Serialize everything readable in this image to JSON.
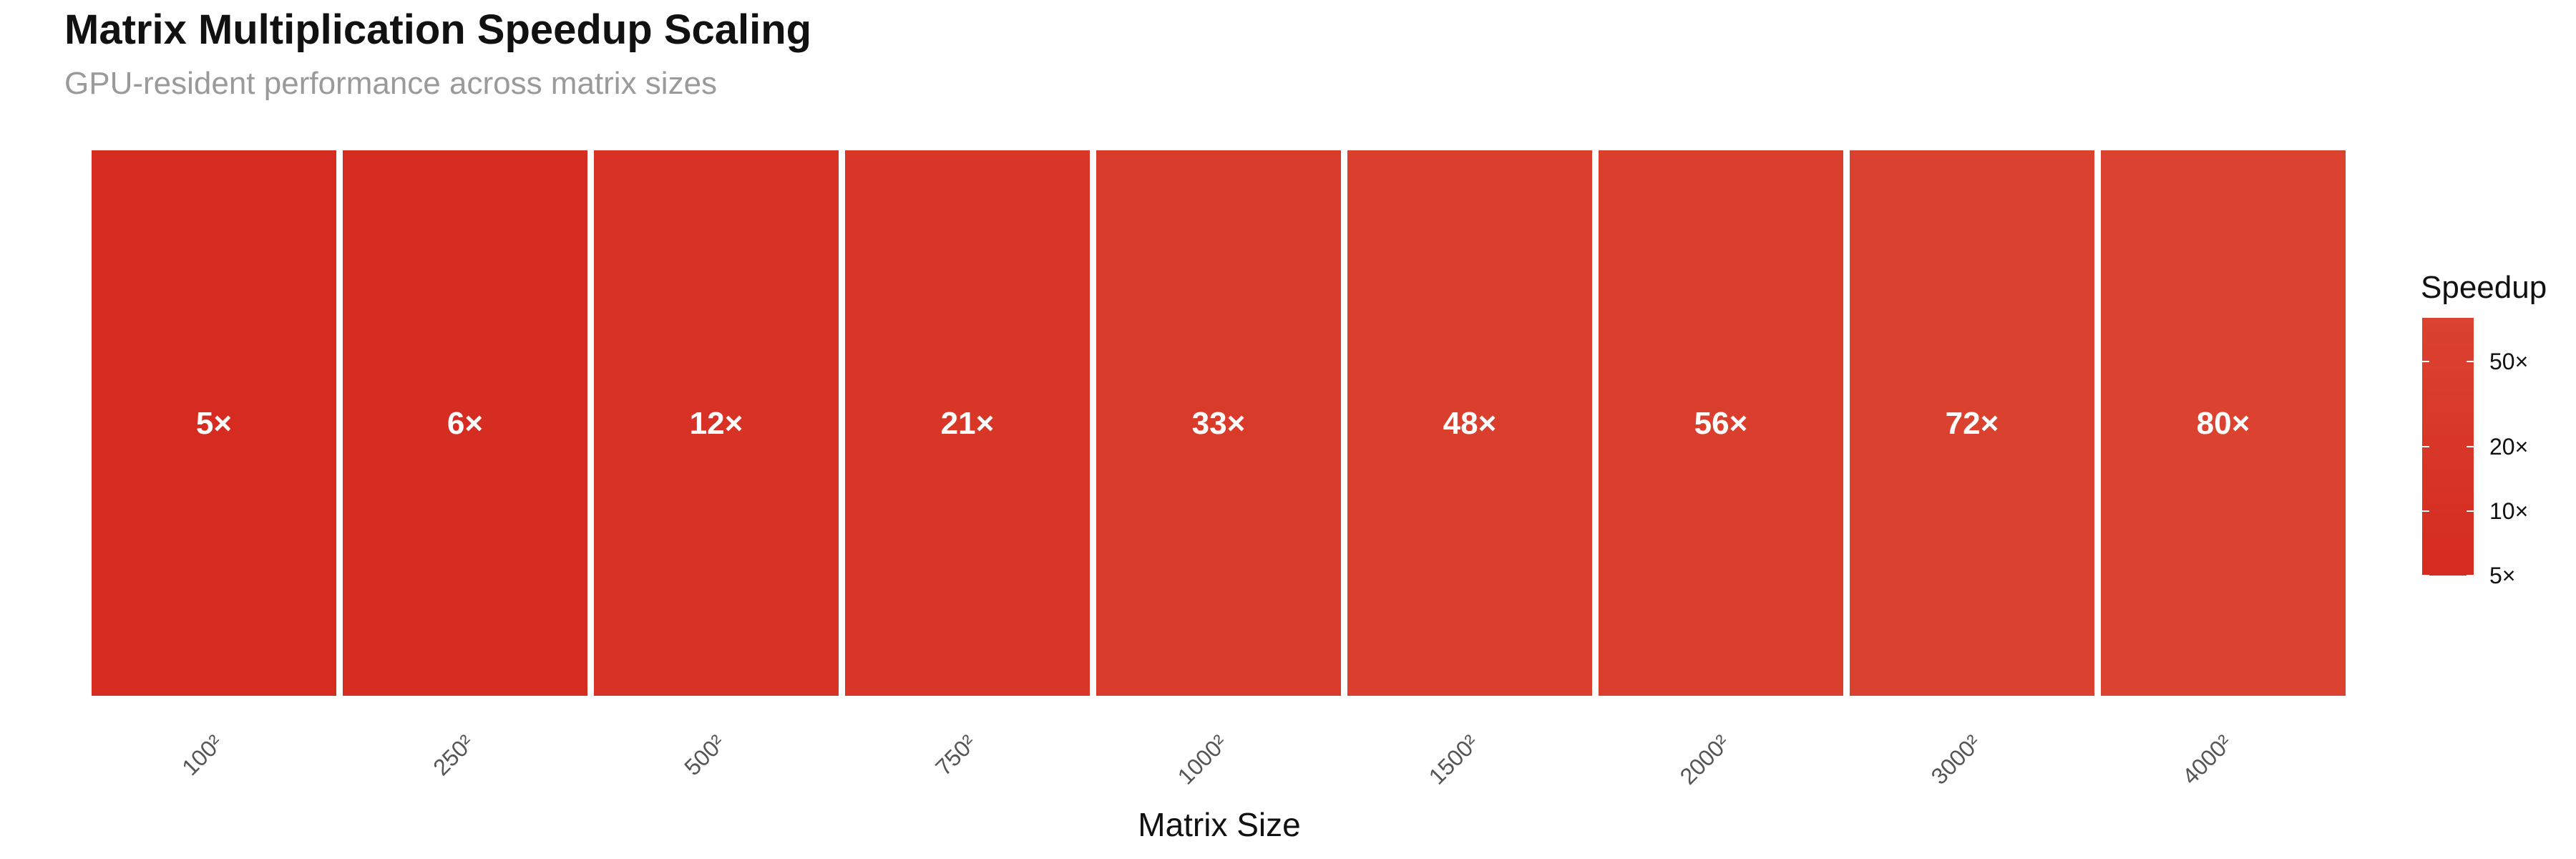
{
  "chart_data": {
    "type": "heatmap",
    "title": "Matrix Multiplication Speedup Scaling",
    "subtitle": "GPU-resident performance across matrix sizes",
    "xlabel": "Matrix Size",
    "ylabel": "",
    "categories": [
      "100²",
      "250²",
      "500²",
      "750²",
      "1000²",
      "1500²",
      "2000²",
      "3000²",
      "4000²"
    ],
    "values": [
      5,
      6,
      12,
      21,
      33,
      48,
      56,
      72,
      80
    ],
    "value_labels": [
      "5×",
      "6×",
      "12×",
      "21×",
      "33×",
      "48×",
      "56×",
      "72×",
      "80×"
    ],
    "legend": {
      "title": "Speedup",
      "position": "right",
      "scale": "log",
      "ticks": [
        5,
        10,
        20,
        50
      ],
      "tick_labels": [
        "5×",
        "10×",
        "20×",
        "50×"
      ],
      "range": [
        5,
        80
      ]
    },
    "colors": {
      "low": "#d52b20",
      "high": "#db4230",
      "grid": "#ffffff"
    },
    "grid": false
  }
}
